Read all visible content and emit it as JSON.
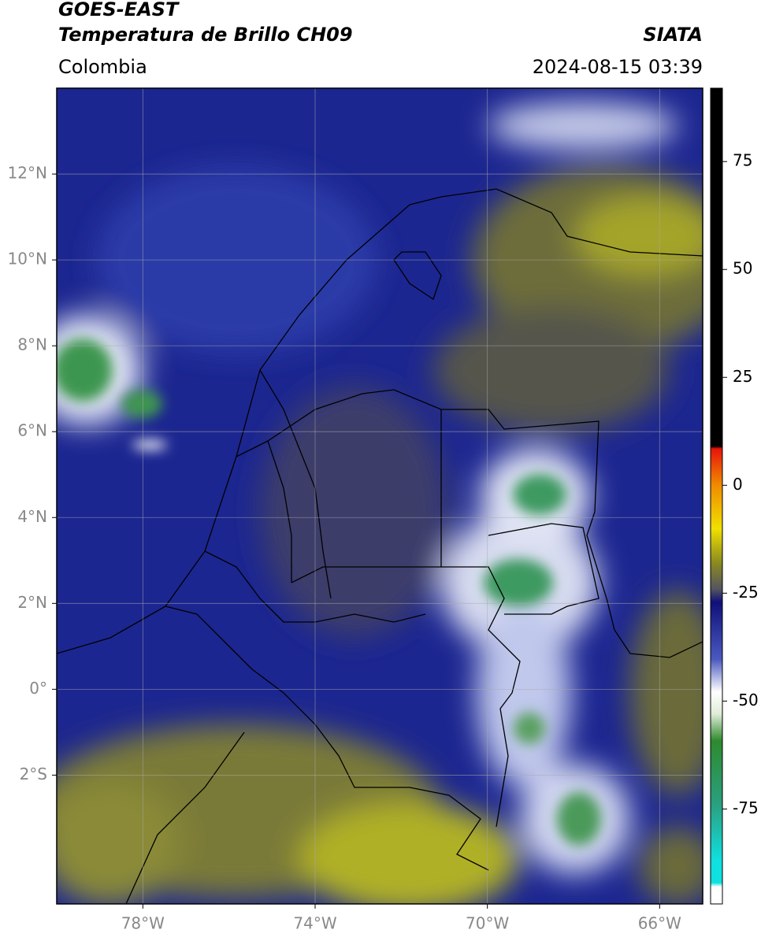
{
  "header": {
    "satellite": "GOES-EAST",
    "product": "Temperatura de Brillo CH09",
    "region": "Colombia",
    "source": "SIATA",
    "datetime": "2024-08-15 03:39"
  },
  "map": {
    "lon_range": [
      -80,
      -65
    ],
    "lat_range": [
      -5,
      14
    ],
    "lon_ticks": [
      {
        "value": -78,
        "label": "78°W"
      },
      {
        "value": -74,
        "label": "74°W"
      },
      {
        "value": -70,
        "label": "70°W"
      },
      {
        "value": -66,
        "label": "66°W"
      }
    ],
    "lat_ticks": [
      {
        "value": 12,
        "label": "12°N"
      },
      {
        "value": 10,
        "label": "10°N"
      },
      {
        "value": 8,
        "label": "8°N"
      },
      {
        "value": 6,
        "label": "6°N"
      },
      {
        "value": 4,
        "label": "4°N"
      },
      {
        "value": 2,
        "label": "2°N"
      },
      {
        "value": 0,
        "label": "0°"
      },
      {
        "value": -2,
        "label": "2°S"
      }
    ]
  },
  "colorbar": {
    "range": [
      -97,
      92
    ],
    "ticks": [
      75,
      50,
      25,
      0,
      -25,
      -50,
      -75
    ]
  }
}
